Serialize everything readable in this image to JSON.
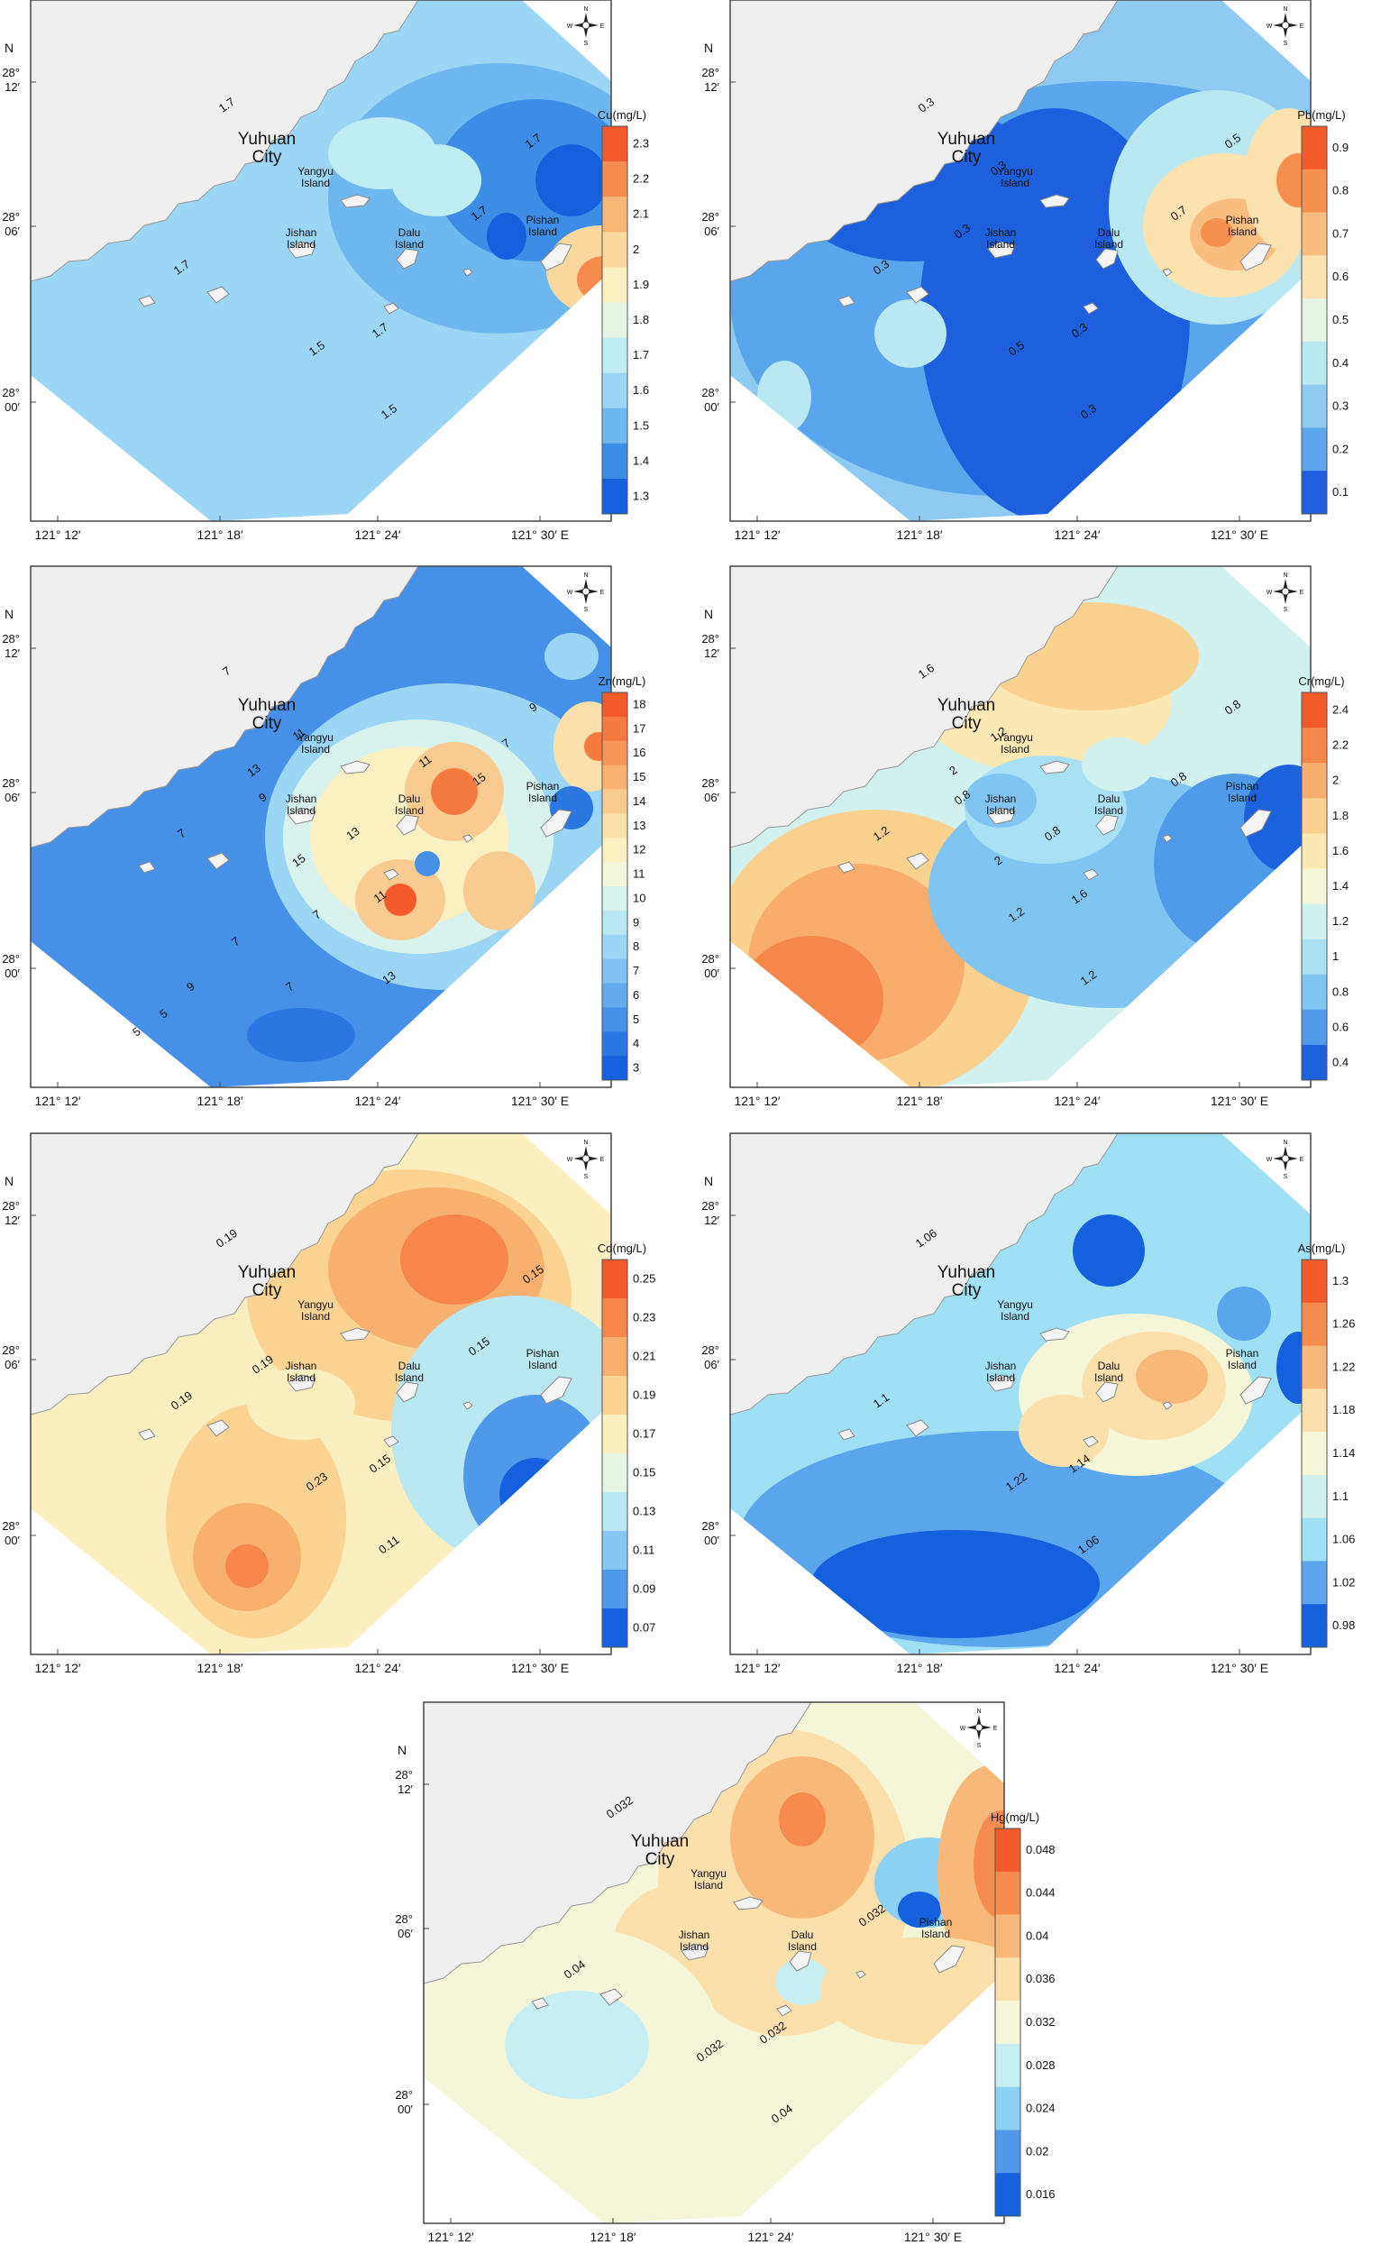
{
  "common": {
    "north_label": "N",
    "city_label_line1": "Yuhuan",
    "city_label_line2": "City",
    "islands": [
      {
        "line1": "Yangyu",
        "line2": "Island"
      },
      {
        "line1": "Jishan",
        "line2": "Island"
      },
      {
        "line1": "Dalu",
        "line2": "Island"
      },
      {
        "line1": "Pishan",
        "line2": "Island"
      }
    ],
    "lat_ticks": [
      {
        "deg": "28°",
        "min": "12′"
      },
      {
        "deg": "28°",
        "min": "06′"
      },
      {
        "deg": "28°",
        "min": "00′"
      }
    ],
    "lon_ticks": [
      "121° 12′",
      "121° 18′",
      "121° 24′",
      "121° 30′  E"
    ],
    "compass": {
      "n": "N",
      "s": "S",
      "e": "E",
      "w": "W"
    },
    "colors": {
      "land": "#efefef",
      "frame": "#444444"
    }
  },
  "maps": [
    {
      "id": "cu",
      "element": "Cu",
      "unit_title": "Cu(mg/L)",
      "legend": [
        "2.3",
        "2.2",
        "2.1",
        "2",
        "1.9",
        "1.8",
        "1.7",
        "1.6",
        "1.5",
        "1.4",
        "1.3"
      ],
      "colors": [
        "#f25a2a",
        "#f68b4e",
        "#f8b677",
        "#fbd89e",
        "#fbf0c2",
        "#e6f4e6",
        "#c0ecf3",
        "#9bd6f4",
        "#6fb8ef",
        "#3c8de6",
        "#1560dc"
      ],
      "background_level": 7,
      "contour_labels": [
        "1.7",
        "1.7",
        "1.5",
        "1.7",
        "1.5",
        "1.7",
        "1.7"
      ]
    },
    {
      "id": "pb",
      "element": "Pb",
      "unit_title": "Pb(mg/L)",
      "legend": [
        "0.9",
        "0.8",
        "0.7",
        "0.6",
        "0.5",
        "0.4",
        "0.3",
        "0.2",
        "0.1"
      ],
      "colors": [
        "#f25a2a",
        "#f6904f",
        "#f9bd80",
        "#fbe2ae",
        "#e6f4e6",
        "#b9e8f3",
        "#8fcaf3",
        "#5aa5ec",
        "#1d5fdc"
      ],
      "background_level": 6,
      "contour_labels": [
        "0.3",
        "0.3",
        "0.5",
        "0.3",
        "0.3",
        "0.7",
        "0.5",
        "0.3",
        "0.3"
      ]
    },
    {
      "id": "zn",
      "element": "Zn",
      "unit_title": "Zn(mg/L)",
      "legend": [
        "18",
        "17",
        "16",
        "15",
        "14",
        "13",
        "12",
        "11",
        "10",
        "9",
        "8",
        "7",
        "6",
        "5",
        "4",
        "3"
      ],
      "colors": [
        "#f25a2a",
        "#f47a40",
        "#f69658",
        "#f8b274",
        "#facb90",
        "#fbe0ab",
        "#fbf0c2",
        "#f2f7d9",
        "#d8f2ee",
        "#b9e8f3",
        "#9bd6f4",
        "#80c1f2",
        "#64aaed",
        "#4690e7",
        "#2b77e1",
        "#1560dc"
      ],
      "background_level": 13,
      "contour_labels": [
        "7",
        "7",
        "7",
        "11",
        "13",
        "15",
        "9",
        "9",
        "11",
        "13",
        "13",
        "15",
        "11",
        "7",
        "9",
        "7",
        "5",
        "5",
        "7"
      ]
    },
    {
      "id": "cr",
      "element": "Cr",
      "unit_title": "Cr(mg/L)",
      "legend": [
        "2.4",
        "2.2",
        "2",
        "1.8",
        "1.6",
        "1.4",
        "1.2",
        "1",
        "0.8",
        "0.6",
        "0.4"
      ],
      "colors": [
        "#f25a2a",
        "#f6874b",
        "#f8ad6d",
        "#fbd190",
        "#fbe8b3",
        "#f5f6d8",
        "#d0f1ee",
        "#a8e0f4",
        "#80c4f2",
        "#4f9ae9",
        "#1d62dd"
      ],
      "background_level": 6,
      "contour_labels": [
        "1.6",
        "1.2",
        "1.2",
        "1.6",
        "1.2",
        "0.8",
        "0.8",
        "0.8",
        "1.2",
        "0.8",
        "2",
        "2"
      ]
    },
    {
      "id": "cd",
      "element": "Cd",
      "unit_title": "Cd(mg/L)",
      "legend": [
        "0.25",
        "0.23",
        "0.21",
        "0.19",
        "0.17",
        "0.15",
        "0.13",
        "0.11",
        "0.09",
        "0.07"
      ],
      "colors": [
        "#f25a2a",
        "#f6864a",
        "#f8b06e",
        "#fbd493",
        "#fbefc0",
        "#e6f4e6",
        "#b9e8f3",
        "#86c8f3",
        "#4f98ea",
        "#1560dc"
      ],
      "background_level": 4,
      "contour_labels": [
        "0.19",
        "0.19",
        "0.23",
        "0.15",
        "0.11",
        "0.15",
        "0.15",
        "0.19"
      ]
    },
    {
      "id": "as",
      "element": "As",
      "unit_title": "As(mg/L)",
      "legend": [
        "1.3",
        "1.26",
        "1.22",
        "1.18",
        "1.14",
        "1.1",
        "1.06",
        "1.02",
        "0.98"
      ],
      "colors": [
        "#f25a2a",
        "#f68b4e",
        "#f8b87a",
        "#fbe0ab",
        "#f5f6d8",
        "#d0f1ee",
        "#a0e0f4",
        "#5aa5ec",
        "#1560dc"
      ],
      "background_level": 6,
      "contour_labels": [
        "1.06",
        "1.1",
        "1.22",
        "1.14",
        "1.06"
      ]
    },
    {
      "id": "hg",
      "element": "Hg",
      "unit_title": "Hg(mg/L)",
      "legend": [
        "0.048",
        "0.044",
        "0.04",
        "0.036",
        "0.032",
        "0.028",
        "0.024",
        "0.02",
        "0.016"
      ],
      "colors": [
        "#f25a2a",
        "#f68b4e",
        "#f8b87a",
        "#fbe0ab",
        "#f5f6d8",
        "#c7eef2",
        "#8cd0f4",
        "#4f98ea",
        "#1560dc"
      ],
      "background_level": 4,
      "contour_labels": [
        "0.032",
        "0.04",
        "0.032",
        "0.032",
        "0.04",
        "0.032"
      ]
    }
  ]
}
